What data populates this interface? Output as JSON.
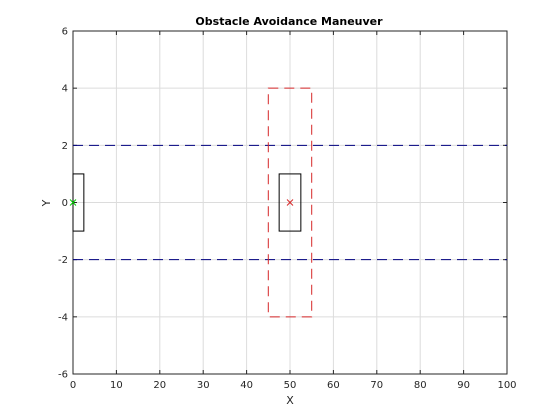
{
  "chart_data": {
    "type": "line",
    "title": "Obstacle Avoidance Maneuver",
    "xlabel": "X",
    "ylabel": "Y",
    "xlim": [
      0,
      100
    ],
    "ylim": [
      -6,
      6
    ],
    "xticks": [
      0,
      10,
      20,
      30,
      40,
      50,
      60,
      70,
      80,
      90,
      100
    ],
    "yticks": [
      -6,
      -4,
      -2,
      0,
      2,
      4,
      6
    ],
    "grid": true,
    "colors": {
      "boundary": "#00007f",
      "obstacle_zone": "#d62728",
      "vehicle": "#000000",
      "start_marker": "#00cc00",
      "obstacle_marker": "#d62728",
      "grid": "#dcdcdc",
      "axes": "#262626"
    },
    "series": [
      {
        "role": "boundary",
        "style": "dashed",
        "x": [
          0,
          100
        ],
        "y": [
          2,
          2
        ]
      },
      {
        "role": "boundary",
        "style": "dashed",
        "x": [
          0,
          100
        ],
        "y": [
          -2,
          -2
        ]
      },
      {
        "role": "obstacle_zone",
        "style": "dashed",
        "shape": "rect",
        "x": [
          45,
          55
        ],
        "y": [
          -4,
          4
        ]
      },
      {
        "role": "obstacle",
        "style": "solid",
        "shape": "rect",
        "x": [
          47.5,
          52.5
        ],
        "y": [
          -1,
          1
        ]
      },
      {
        "role": "vehicle",
        "style": "solid",
        "shape": "rect",
        "x": [
          0,
          2.5
        ],
        "y": [
          -1,
          1
        ]
      },
      {
        "role": "start_marker",
        "marker": "x",
        "x": [
          0
        ],
        "y": [
          0
        ]
      },
      {
        "role": "obstacle_marker",
        "marker": "x",
        "x": [
          50
        ],
        "y": [
          0
        ]
      }
    ]
  }
}
